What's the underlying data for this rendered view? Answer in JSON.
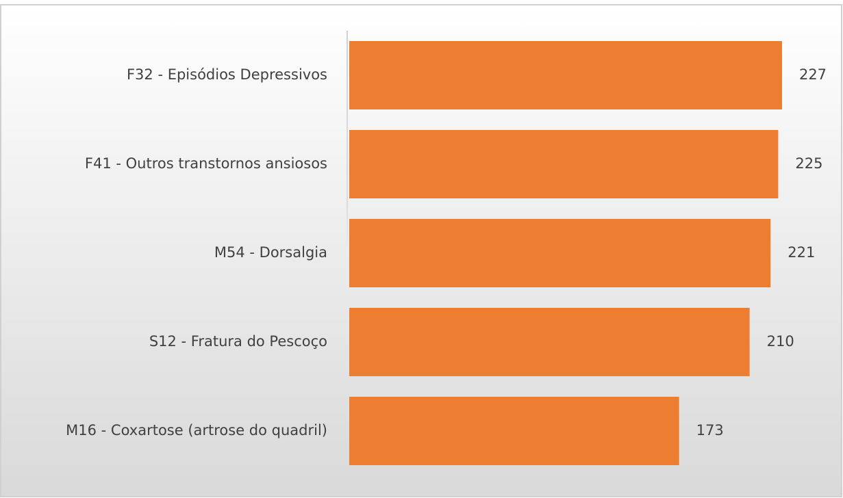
{
  "chart_data": {
    "type": "bar",
    "orientation": "horizontal",
    "categories": [
      "F32 - Episódios Depressivos",
      "F41 - Outros transtornos ansiosos",
      "M54 - Dorsalgia",
      "S12 - Fratura do Pescoço",
      "M16 - Coxartose (artrose do quadril)"
    ],
    "values": [
      227,
      225,
      221,
      210,
      173
    ],
    "color": "#ed7d31"
  }
}
